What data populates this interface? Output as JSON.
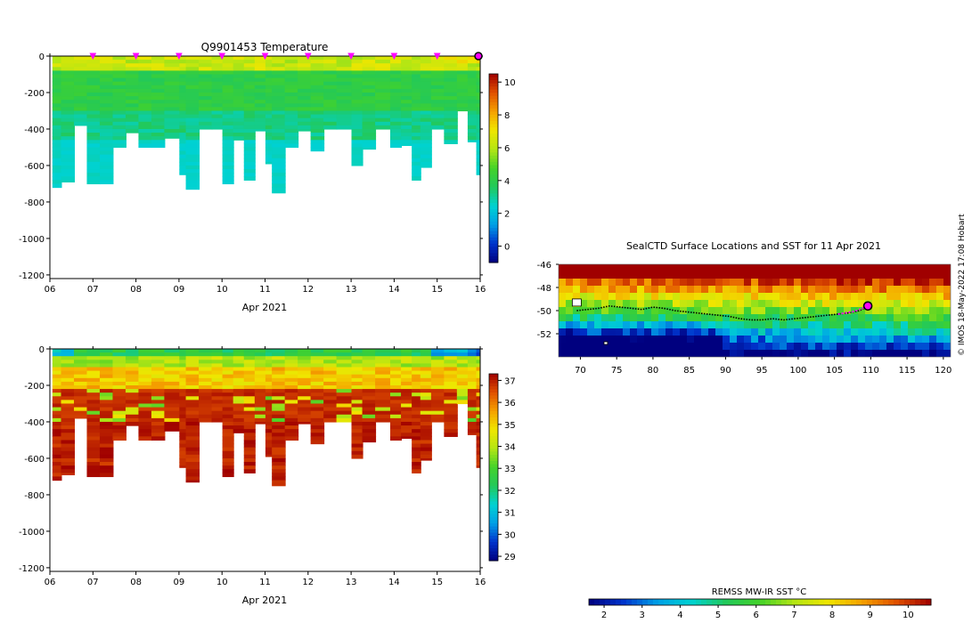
{
  "figure": {
    "copyright": "© IMOS 18-May-2022 17:08 Hobart"
  },
  "chart_data": [
    {
      "type": "heatmap",
      "title": "Q9901453  Temperature",
      "xlabel": "Apr 2021",
      "ylabel": "",
      "xticks": [
        "06",
        "07",
        "08",
        "09",
        "10",
        "11",
        "12",
        "13",
        "14",
        "15",
        "16"
      ],
      "x_range_days": [
        6,
        16
      ],
      "yticks": [
        0,
        -200,
        -400,
        -600,
        -800,
        -1000,
        -1200
      ],
      "ylim": [
        -1220,
        0
      ],
      "colorbar": {
        "ticks": [
          10,
          8,
          6,
          4,
          2,
          0
        ],
        "range": [
          -1,
          10.5
        ],
        "colors": [
          "#00007f",
          "#0033cc",
          "#00a0e6",
          "#00d2d2",
          "#22c95a",
          "#44d22a",
          "#b4e614",
          "#f0e600",
          "#f5a000",
          "#e05000",
          "#a00000"
        ]
      },
      "markers": {
        "color": "#ff00ff",
        "days": [
          7,
          8,
          9,
          10,
          11,
          12,
          13,
          14,
          15
        ],
        "last_day": 16
      },
      "profiles": [
        {
          "day": 6.1,
          "depth": 720
        },
        {
          "day": 6.3,
          "depth": 690
        },
        {
          "day": 6.6,
          "depth": 380
        },
        {
          "day": 6.9,
          "depth": 700
        },
        {
          "day": 7.2,
          "depth": 700
        },
        {
          "day": 7.5,
          "depth": 500
        },
        {
          "day": 7.8,
          "depth": 420
        },
        {
          "day": 8.1,
          "depth": 500
        },
        {
          "day": 8.4,
          "depth": 500
        },
        {
          "day": 8.7,
          "depth": 450
        },
        {
          "day": 9.05,
          "depth": 650
        },
        {
          "day": 9.2,
          "depth": 730
        },
        {
          "day": 9.5,
          "depth": 400
        },
        {
          "day": 9.8,
          "depth": 400
        },
        {
          "day": 10.05,
          "depth": 700
        },
        {
          "day": 10.3,
          "depth": 460
        },
        {
          "day": 10.55,
          "depth": 680
        },
        {
          "day": 10.8,
          "depth": 410
        },
        {
          "day": 11.05,
          "depth": 590
        },
        {
          "day": 11.2,
          "depth": 750
        },
        {
          "day": 11.5,
          "depth": 500
        },
        {
          "day": 11.8,
          "depth": 410
        },
        {
          "day": 12.1,
          "depth": 520
        },
        {
          "day": 12.4,
          "depth": 400
        },
        {
          "day": 12.7,
          "depth": 400
        },
        {
          "day": 13.05,
          "depth": 600
        },
        {
          "day": 13.3,
          "depth": 510
        },
        {
          "day": 13.6,
          "depth": 400
        },
        {
          "day": 13.95,
          "depth": 500
        },
        {
          "day": 14.2,
          "depth": 490
        },
        {
          "day": 14.45,
          "depth": 680
        },
        {
          "day": 14.65,
          "depth": 610
        },
        {
          "day": 14.9,
          "depth": 400
        },
        {
          "day": 15.2,
          "depth": 480
        },
        {
          "day": 15.5,
          "depth": 300
        },
        {
          "day": 15.75,
          "depth": 470
        },
        {
          "day": 15.95,
          "depth": 650
        }
      ],
      "value_rule": "surface ~5.5-7 °C (yellow-green), mid-depth ~4 °C, deep ~2.5 °C"
    },
    {
      "type": "heatmap",
      "title": "",
      "xlabel": "Apr 2021",
      "ylabel": "",
      "xticks": [
        "06",
        "07",
        "08",
        "09",
        "10",
        "11",
        "12",
        "13",
        "14",
        "15",
        "16"
      ],
      "x_range_days": [
        6,
        16
      ],
      "yticks": [
        0,
        -200,
        -400,
        -600,
        -800,
        -1000,
        -1200
      ],
      "ylim": [
        -1220,
        0
      ],
      "colorbar": {
        "ticks": [
          37,
          36,
          35,
          34,
          33,
          32,
          31,
          30,
          29
        ],
        "range": [
          28.8,
          37.3
        ],
        "colors": [
          "#00007f",
          "#0033cc",
          "#00a0e6",
          "#00d2d2",
          "#22c95a",
          "#44d22a",
          "#b4e614",
          "#f0e600",
          "#f5a000",
          "#e05000",
          "#a00000"
        ]
      },
      "value_rule": "surface ~31-33 (blue-green), upper ~34-35 (orange), deep >36 (dark red)"
    },
    {
      "type": "heatmap",
      "title": "SealCTD Surface Locations and SST for 11 Apr 2021",
      "xlabel": "",
      "ylabel": "",
      "xticks": [
        "70",
        "75",
        "80",
        "85",
        "90",
        "95",
        "100",
        "105",
        "110",
        "115",
        "120"
      ],
      "xlim": [
        67,
        121
      ],
      "yticks": [
        "-46",
        "-48",
        "-50",
        "-52"
      ],
      "ylim": [
        -54,
        -46
      ],
      "colorbar_label": "REMSS MW-IR SST °C",
      "colorbar_ticks": [
        "2",
        "3",
        "4",
        "5",
        "6",
        "7",
        "8",
        "9",
        "10"
      ],
      "colorbar_range": [
        1.6,
        10.6
      ],
      "track": {
        "lon": [
          69.5,
          71,
          72.5,
          74,
          75.5,
          77,
          78.5,
          80,
          81.5,
          83,
          84.5,
          86,
          87.5,
          89,
          90.5,
          92,
          93.5,
          95,
          96.5,
          98,
          99.5,
          101,
          102.5,
          104,
          105.5,
          107,
          108.5,
          109.6
        ],
        "lat": [
          -50.0,
          -49.9,
          -49.8,
          -49.6,
          -49.7,
          -49.8,
          -49.9,
          -49.7,
          -49.8,
          -50.0,
          -50.1,
          -50.2,
          -50.3,
          -50.4,
          -50.5,
          -50.7,
          -50.8,
          -50.8,
          -50.7,
          -50.8,
          -50.7,
          -50.6,
          -50.5,
          -50.4,
          -50.3,
          -50.2,
          -50.0,
          -49.6
        ]
      },
      "recent_track": {
        "lon": [
          105.5,
          106.5,
          107.5,
          108.5,
          109.6
        ],
        "lat": [
          -50.3,
          -50.2,
          -50.1,
          -49.9,
          -49.6
        ]
      },
      "current_position": {
        "lon": 109.6,
        "lat": -49.6
      },
      "islands": [
        {
          "lon": 69.5,
          "lat": -49.3
        },
        {
          "lon": 73.5,
          "lat": -53.0
        }
      ]
    }
  ]
}
